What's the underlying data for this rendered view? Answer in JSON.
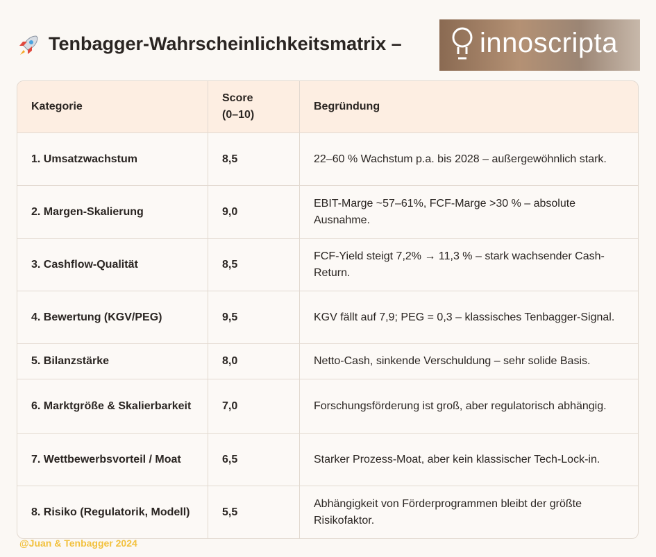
{
  "header": {
    "title": "Tenbagger-Wahrscheinlichkeitsmatrix –",
    "logo": "innoscripta"
  },
  "table": {
    "columns": [
      "Kategorie",
      "Score (0–10)",
      "Begründung"
    ],
    "rows": [
      [
        "1. Umsatzwachstum",
        "8,5",
        "22–60 % Wachstum p.a. bis 2028 – außergewöhnlich stark."
      ],
      [
        "2. Margen-Skalierung",
        "9,0",
        "EBIT-Marge ~57–61%, FCF-Marge >30 % – absolute Ausnahme."
      ],
      [
        "3. Cashflow-Qualität",
        "8,5",
        "FCF-Yield steigt 7,2% → 11,3 % – stark wachsender Cash-Return."
      ],
      [
        "4. Bewertung (KGV/PEG)",
        "9,5",
        "KGV fällt auf 7,9; PEG = 0,3 – klassisches Tenbagger-Signal."
      ],
      [
        "5. Bilanzstärke",
        "8,0",
        "Netto-Cash, sinkende Verschuldung – sehr solide Basis."
      ],
      [
        "6. Marktgröße & Skalierbarkeit",
        "7,0",
        "Forschungsförderung ist groß, aber regulatorisch abhängig."
      ],
      [
        "7. Wettbewerbsvorteil / Moat",
        "6,5",
        "Starker Prozess-Moat, aber kein klassischer Tech-Lock-in."
      ],
      [
        "8. Risiko (Regulatorik, Modell)",
        "5,5",
        "Abhängigkeit von Förderprogrammen bleibt der größte Risikofaktor."
      ]
    ]
  },
  "footer": "@Juan & Tenbagger 2024"
}
